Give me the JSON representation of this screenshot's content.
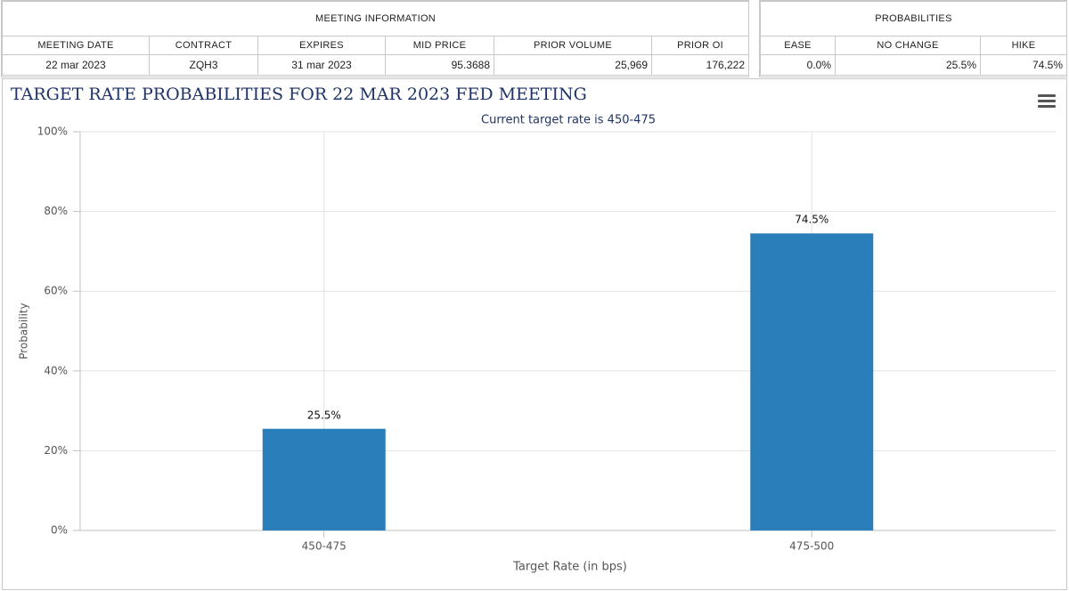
{
  "meeting_information": {
    "title": "MEETING INFORMATION",
    "headers": [
      "MEETING DATE",
      "CONTRACT",
      "EXPIRES",
      "MID PRICE",
      "PRIOR VOLUME",
      "PRIOR OI"
    ],
    "row": [
      "22 mar 2023",
      "ZQH3",
      "31 mar 2023",
      "95.3688",
      "25,969",
      "176,222"
    ]
  },
  "probabilities": {
    "title": "PROBABILITIES",
    "headers": [
      "EASE",
      "NO CHANGE",
      "HIKE"
    ],
    "row": [
      "0.0%",
      "25.5%",
      "74.5%"
    ]
  },
  "chart_data": {
    "type": "bar",
    "title": "TARGET RATE PROBABILITIES FOR 22 MAR 2023 FED MEETING",
    "subtitle": "Current target rate is 450-475",
    "x_label": "Target Rate (in bps)",
    "y_label": "Probability",
    "categories": [
      "450-475",
      "475-500"
    ],
    "values": [
      25.5,
      74.5
    ],
    "value_labels": [
      "25.5%",
      "74.5%"
    ],
    "color": "#2a7fba",
    "ylim": [
      0,
      100
    ],
    "yticks": [
      {
        "value": 0,
        "label": "0%"
      },
      {
        "value": 20,
        "label": "20%"
      },
      {
        "value": 40,
        "label": "40%"
      },
      {
        "value": 60,
        "label": "60%"
      },
      {
        "value": 80,
        "label": "80%"
      },
      {
        "value": 100,
        "label": "100%"
      }
    ],
    "grid": true
  }
}
